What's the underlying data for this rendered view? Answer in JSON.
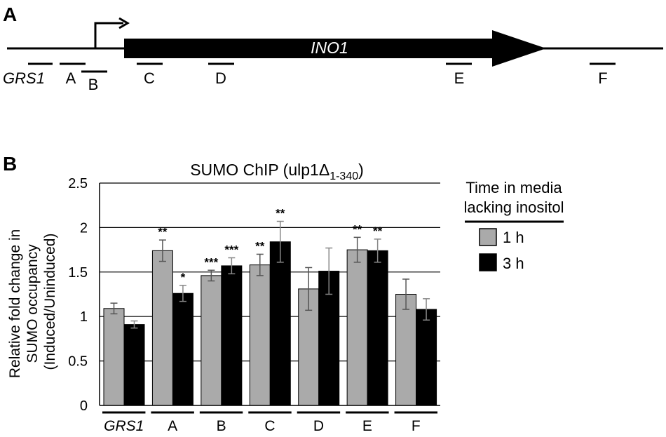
{
  "panel_a": {
    "label": "A",
    "gene": "INO1",
    "regions": [
      {
        "id": "grs1",
        "label": "GRS1",
        "italic": true
      },
      {
        "id": "a",
        "label": "A"
      },
      {
        "id": "b",
        "label": "B"
      },
      {
        "id": "c",
        "label": "C"
      },
      {
        "id": "d",
        "label": "D"
      },
      {
        "id": "e",
        "label": "E"
      },
      {
        "id": "f",
        "label": "F"
      }
    ]
  },
  "panel_b": {
    "label": "B",
    "title_main": "SUMO ChIP (ulp1Δ",
    "title_sub": "1-340",
    "title_end": ")",
    "ylabel_lines": [
      "Relative fold change in",
      "SUMO occupancy",
      "(Induced/Uninduced)"
    ],
    "legend_title_lines": [
      "Time in media",
      "lacking inositol"
    ]
  },
  "colors": {
    "series_1h": "#aaaaaa",
    "series_3h": "#000000",
    "gridline": "#000000"
  },
  "chart_data": {
    "type": "bar",
    "title": "SUMO ChIP (ulp1Δ1-340)",
    "ylabel": "Relative fold change in SUMO occupancy (Induced/Uninduced)",
    "xlabel": "",
    "ylim": [
      0,
      2.5
    ],
    "yticks": [
      "0",
      "0.5",
      "1",
      "1.5",
      "2",
      "2.5"
    ],
    "grid": true,
    "legend_position": "right",
    "categories": [
      "GRS1",
      "A",
      "B",
      "C",
      "D",
      "E",
      "F"
    ],
    "series": [
      {
        "name": "1 h",
        "values": [
          1.09,
          1.74,
          1.46,
          1.58,
          1.31,
          1.75,
          1.25
        ],
        "errors": [
          0.06,
          0.12,
          0.06,
          0.12,
          0.24,
          0.14,
          0.17
        ],
        "significance": [
          "",
          "**",
          "***",
          "**",
          "",
          "**",
          ""
        ]
      },
      {
        "name": "3 h",
        "values": [
          0.91,
          1.26,
          1.57,
          1.84,
          1.51,
          1.74,
          1.08
        ],
        "errors": [
          0.04,
          0.09,
          0.09,
          0.23,
          0.26,
          0.13,
          0.12
        ],
        "significance": [
          "",
          "*",
          "***",
          "**",
          "",
          "**",
          ""
        ]
      }
    ]
  }
}
